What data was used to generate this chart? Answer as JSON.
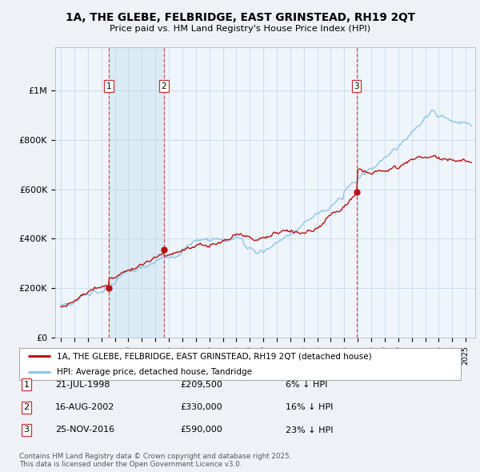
{
  "title": "1A, THE GLEBE, FELBRIDGE, EAST GRINSTEAD, RH19 2QT",
  "subtitle": "Price paid vs. HM Land Registry's House Price Index (HPI)",
  "hpi_color": "#8ec6e6",
  "price_color": "#bb1111",
  "dashed_color": "#cc3333",
  "shade_color": "#d8eaf5",
  "legend_label_red": "1A, THE GLEBE, FELBRIDGE, EAST GRINSTEAD, RH19 2QT (detached house)",
  "legend_label_blue": "HPI: Average price, detached house, Tandridge",
  "transactions": [
    {
      "num": 1,
      "date": "21-JUL-1998",
      "price": 209500,
      "rel": "6% ↓ HPI",
      "year": 1998.54
    },
    {
      "num": 2,
      "date": "16-AUG-2002",
      "price": 330000,
      "rel": "16% ↓ HPI",
      "year": 2002.62
    },
    {
      "num": 3,
      "date": "25-NOV-2016",
      "price": 590000,
      "rel": "23% ↓ HPI",
      "year": 2016.9
    }
  ],
  "footer": "Contains HM Land Registry data © Crown copyright and database right 2025.\nThis data is licensed under the Open Government Licence v3.0.",
  "bg_color": "#eef2f7",
  "plot_bg": "#eef5fb"
}
